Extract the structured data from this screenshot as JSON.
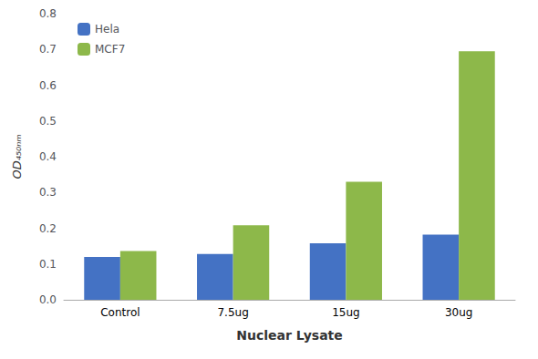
{
  "chart_data": {
    "type": "bar",
    "categories": [
      "Control",
      "7.5ug",
      "15ug",
      "30ug"
    ],
    "series": [
      {
        "name": "Hela",
        "color": "#4472C4",
        "values": [
          0.12,
          0.128,
          0.158,
          0.182
        ]
      },
      {
        "name": "MCF7",
        "color": "#8DB84A",
        "values": [
          0.136,
          0.208,
          0.33,
          0.695
        ]
      }
    ],
    "xlabel": "Nuclear Lysate",
    "ylabel": "OD₄₅₀ₙₘ",
    "ylim": [
      0,
      0.8
    ],
    "yticks": [
      {
        "value": 0,
        "label": "0.0"
      },
      0.1,
      0.2,
      0.3,
      0.4,
      0.5,
      0.6,
      0.7,
      0.8
    ],
    "grid": false,
    "legend": "upper left"
  }
}
